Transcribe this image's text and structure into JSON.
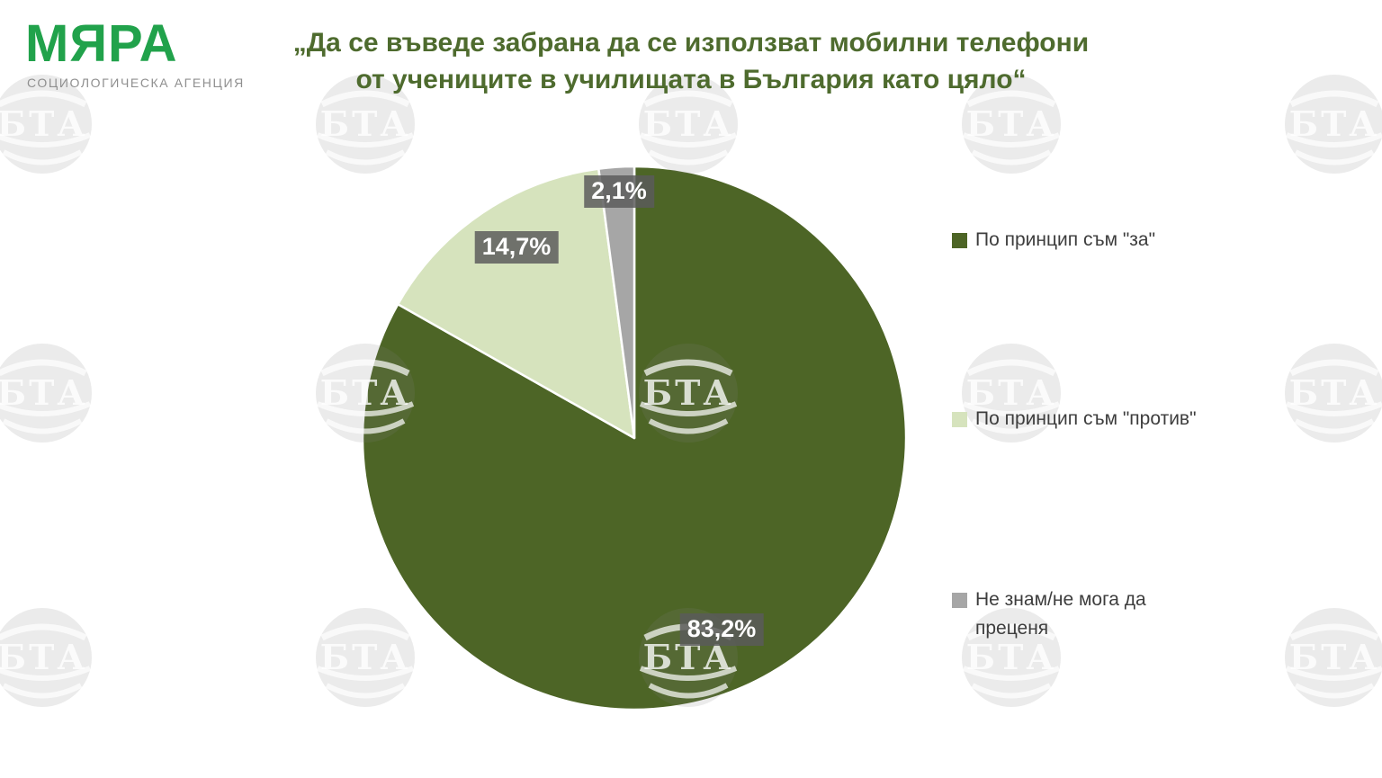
{
  "logo": {
    "name": "МЯРА",
    "subtitle": "СОЦИОЛОГИЧЕСКА АГЕНЦИЯ",
    "brand_color": "#21a24b"
  },
  "title": {
    "line1": "„Да се въведе забрана да се използват мобилни телефони",
    "line2": "от учениците в училищата в България като цяло“",
    "color": "#4e6b2e"
  },
  "watermark": {
    "text": "БТА"
  },
  "chart_data": {
    "type": "pie",
    "title": "„Да се въведе забрана да се използват мобилни телефони от учениците в училищата в България като цяло“",
    "categories": [
      "По принцип съм \"за\"",
      "По принцип съм \"против\"",
      "Не знам/не мога да преценя"
    ],
    "values": [
      83.2,
      14.7,
      2.1
    ],
    "value_labels": [
      "83,2%",
      "14,7%",
      "2,1%"
    ],
    "colors": [
      "#4d6526",
      "#d6e3bd",
      "#a6a6a6"
    ],
    "start_angle_deg": 0,
    "direction": "clockwise",
    "legend_position": "right",
    "data_label_background": "#5a5a5a",
    "data_label_color": "#ffffff"
  }
}
